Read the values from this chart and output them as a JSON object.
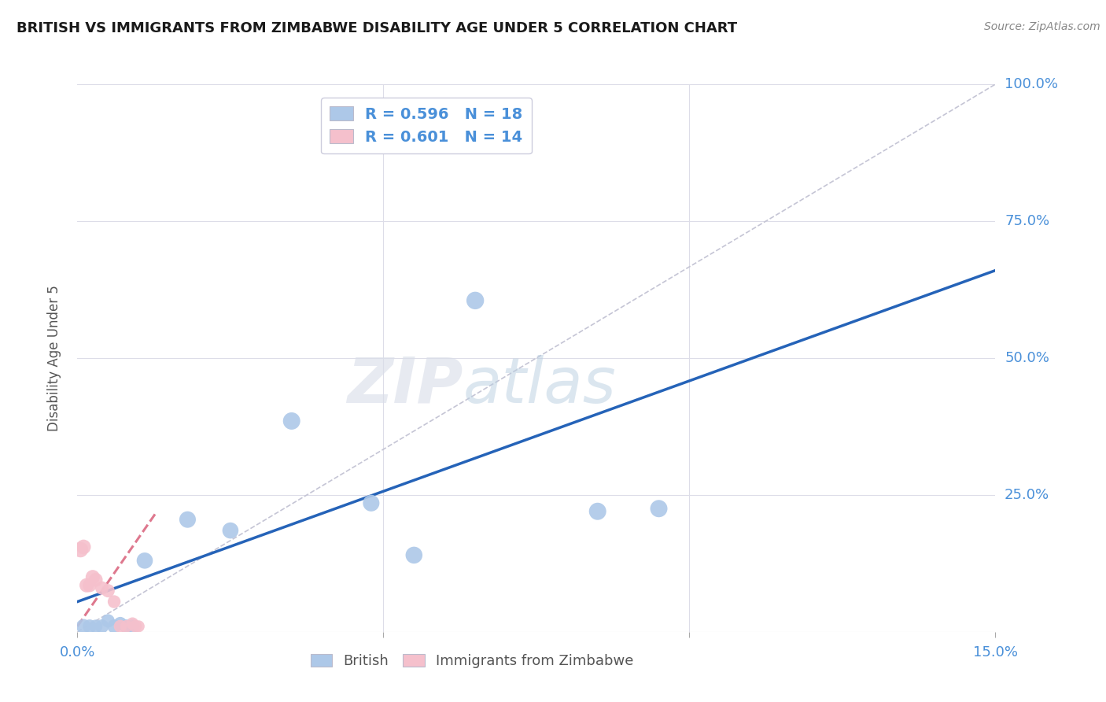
{
  "title": "BRITISH VS IMMIGRANTS FROM ZIMBABWE DISABILITY AGE UNDER 5 CORRELATION CHART",
  "source": "Source: ZipAtlas.com",
  "ylabel": "Disability Age Under 5",
  "xlim": [
    0.0,
    0.15
  ],
  "ylim": [
    0.0,
    1.0
  ],
  "watermark": "ZIPatlas",
  "blue_color": "#adc8e8",
  "pink_color": "#f5c0cc",
  "blue_line_color": "#2563b8",
  "pink_line_color": "#d9607a",
  "diagonal_color": "#c5c5d5",
  "grid_color": "#dddde8",
  "legend_R_british": "R = 0.596",
  "legend_N_british": "N = 18",
  "legend_R_zimbabwe": "R = 0.601",
  "legend_N_zimbabwe": "N = 14",
  "british_x": [
    0.001,
    0.002,
    0.003,
    0.004,
    0.005,
    0.006,
    0.007,
    0.008,
    0.009,
    0.011,
    0.018,
    0.025,
    0.035,
    0.048,
    0.055,
    0.065,
    0.085,
    0.095
  ],
  "british_y": [
    0.01,
    0.01,
    0.01,
    0.01,
    0.02,
    0.01,
    0.015,
    0.01,
    0.01,
    0.13,
    0.205,
    0.185,
    0.385,
    0.235,
    0.14,
    0.605,
    0.22,
    0.225
  ],
  "british_sizes": [
    180,
    160,
    150,
    160,
    150,
    160,
    150,
    160,
    160,
    220,
    230,
    220,
    250,
    230,
    240,
    260,
    250,
    250
  ],
  "zimbabwe_x": [
    0.0005,
    0.001,
    0.0015,
    0.002,
    0.0025,
    0.003,
    0.004,
    0.005,
    0.006,
    0.007,
    0.008,
    0.009,
    0.0095,
    0.01
  ],
  "zimbabwe_y": [
    0.15,
    0.155,
    0.085,
    0.085,
    0.1,
    0.095,
    0.08,
    0.075,
    0.055,
    0.01,
    0.01,
    0.015,
    0.01,
    0.01
  ],
  "zimbabwe_sizes": [
    200,
    180,
    170,
    160,
    170,
    160,
    150,
    150,
    140,
    140,
    130,
    130,
    130,
    120
  ],
  "blue_trend_x": [
    0.0,
    0.15
  ],
  "blue_trend_y": [
    0.055,
    0.66
  ],
  "pink_trend_x": [
    0.0,
    0.013
  ],
  "pink_trend_y": [
    0.01,
    0.22
  ]
}
